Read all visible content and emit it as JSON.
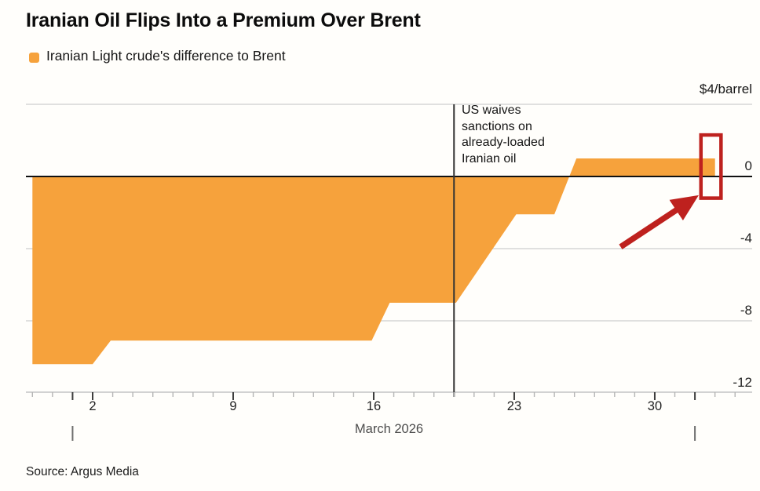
{
  "header": {
    "title": "Iranian Oil Flips Into a Premium Over Brent",
    "legend": {
      "label": "Iranian Light crude's difference to Brent",
      "swatch_color": "#F6A23C"
    }
  },
  "chart_data": {
    "type": "area",
    "title": "Iranian Oil Flips Into a Premium Over Brent",
    "legend_entries": [
      "Iranian Light crude's difference to Brent"
    ],
    "unit_label": "$4/barrel",
    "xlabel": "March 2026",
    "x_axis": {
      "tick_days": [
        2,
        9,
        16,
        23,
        30
      ],
      "minor_tick_every_days": 1,
      "day_min": -1.2,
      "day_max": 34.8,
      "edge_marker_days": [
        1,
        32
      ]
    },
    "y_axis": {
      "tick_values": [
        0,
        -4,
        -8,
        -12
      ],
      "gridline_values": [
        4,
        -4,
        -8
      ],
      "ylim": [
        -12,
        4
      ],
      "zero_line": true
    },
    "series": [
      {
        "name": "Iranian Light crude's difference to Brent",
        "color": "#F6A23C",
        "baseline": 0,
        "points_day_value": [
          [
            -1.0,
            -10.4
          ],
          [
            2.0,
            -10.4
          ],
          [
            2.9,
            -9.1
          ],
          [
            15.9,
            -9.1
          ],
          [
            16.8,
            -7.0
          ],
          [
            20.1,
            -7.0
          ],
          [
            23.1,
            -2.1
          ],
          [
            25.0,
            -2.1
          ],
          [
            26.1,
            1.0
          ],
          [
            33.0,
            1.0
          ]
        ]
      }
    ],
    "annotations": {
      "event_line": {
        "day": 20,
        "label_lines": [
          "US waives",
          "sanctions on",
          "already-loaded",
          "Iranian oil"
        ],
        "line_color": "#333333"
      },
      "highlight_box": {
        "day_start": 32.3,
        "day_end": 33.3,
        "value_top": 2.3,
        "value_bottom": -1.2,
        "color": "#BE211E"
      },
      "arrow": {
        "from": [
          28.3,
          -3.9
        ],
        "to": [
          31.7,
          -1.4
        ],
        "color": "#BE211E"
      }
    },
    "colors": {
      "gridline": "#d6d6d6",
      "axis_line": "#c4c4c4",
      "zero_line": "#111111",
      "minor_tick": "#b5b5b5",
      "major_tick": "#3d3d3d",
      "edge_marker": "#6e6e6e"
    }
  },
  "footer": {
    "source": "Source: Argus Media"
  }
}
